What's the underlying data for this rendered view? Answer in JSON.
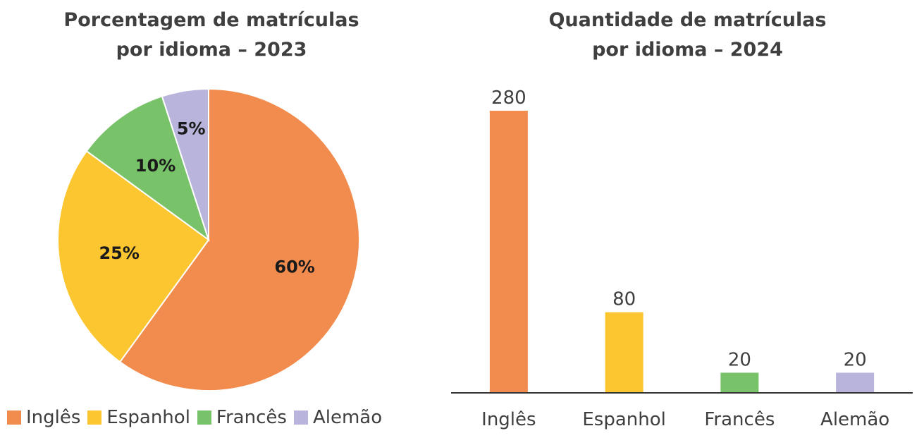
{
  "chart_data": [
    {
      "type": "pie",
      "title_line1": "Porcentagem de matrículas",
      "title_line2": "por idioma – 2023",
      "categories": [
        "Inglês",
        "Espanhol",
        "Francês",
        "Alemão"
      ],
      "values": [
        60,
        25,
        10,
        5
      ],
      "value_labels": [
        "60%",
        "25%",
        "10%",
        "5%"
      ],
      "colors": [
        "#f28c4e",
        "#fbc630",
        "#78c26a",
        "#b8b4dc"
      ],
      "legend_placement": "bottom"
    },
    {
      "type": "bar",
      "title_line1": "Quantidade de matrículas",
      "title_line2": "por idioma – 2024",
      "categories": [
        "Inglês",
        "Espanhol",
        "Francês",
        "Alemão"
      ],
      "values": [
        280,
        80,
        20,
        20
      ],
      "value_labels": [
        "280",
        "80",
        "20",
        "20"
      ],
      "colors": [
        "#f28c4e",
        "#fbc630",
        "#78c26a",
        "#b8b4dc"
      ],
      "ylim": [
        0,
        280
      ],
      "grid": false
    }
  ]
}
